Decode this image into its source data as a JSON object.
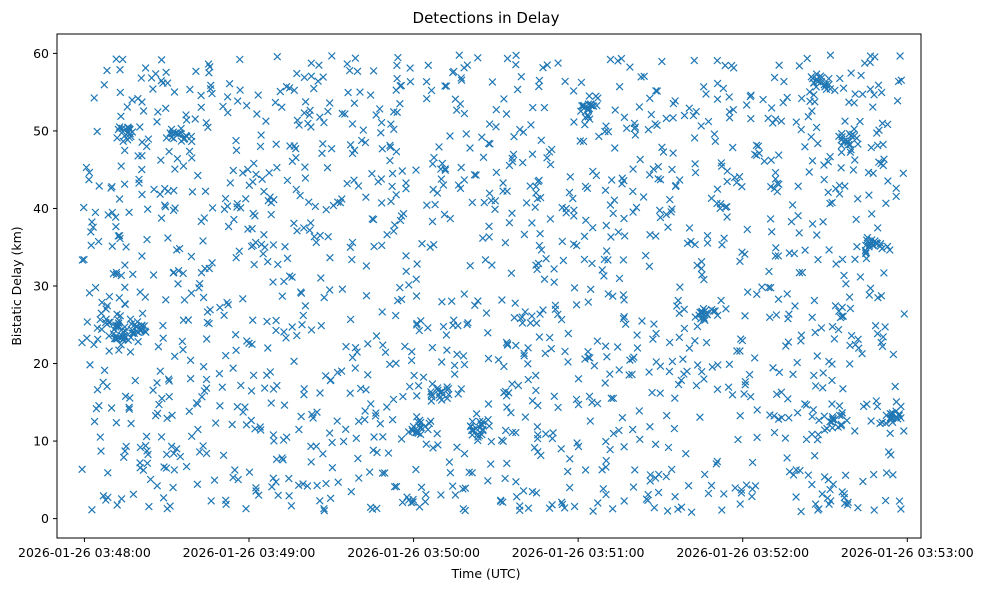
{
  "chart_data": {
    "type": "scatter",
    "title": "Detections in Delay",
    "xlabel": "Time (UTC)",
    "ylabel": "Bistatic Delay (km)",
    "marker": "x",
    "color": "#1f77b4",
    "grid": false,
    "legend": "none",
    "xlim": [
      "2026-01-26 03:47:50",
      "2026-01-26 03:53:05"
    ],
    "ylim": [
      -2.5,
      62.5
    ],
    "xticks": [
      "2026-01-26 03:48:00",
      "2026-01-26 03:49:00",
      "2026-01-26 03:50:00",
      "2026-01-26 03:51:00",
      "2026-01-26 03:52:00",
      "2026-01-26 03:53:00"
    ],
    "yticks": [
      "0",
      "10",
      "20",
      "30",
      "40",
      "50",
      "60"
    ],
    "x_range": [
      "2026-01-26 03:47:59",
      "2026-01-26 03:52:59"
    ],
    "y_range": [
      0.8,
      59.8
    ],
    "approximate_point_count": 1800,
    "clusters": [
      {
        "x": "2026-01-26 03:48:14",
        "y": 23.5
      },
      {
        "x": "2026-01-26 03:48:11",
        "y": 25.2
      },
      {
        "x": "2026-01-26 03:48:19",
        "y": 24.5
      },
      {
        "x": "2026-01-26 03:50:02",
        "y": 11.8
      },
      {
        "x": "2026-01-26 03:50:24",
        "y": 11.5
      },
      {
        "x": "2026-01-26 03:50:10",
        "y": 15.8
      },
      {
        "x": "2026-01-26 03:48:15",
        "y": 49.5
      },
      {
        "x": "2026-01-26 03:48:34",
        "y": 49.5
      },
      {
        "x": "2026-01-26 03:52:47",
        "y": 35.5
      },
      {
        "x": "2026-01-26 03:52:38",
        "y": 49.0
      },
      {
        "x": "2026-01-26 03:52:29",
        "y": 56.5
      },
      {
        "x": "2026-01-26 03:52:34",
        "y": 13.0
      },
      {
        "x": "2026-01-26 03:52:56",
        "y": 13.0
      },
      {
        "x": "2026-01-26 03:51:46",
        "y": 26.5
      },
      {
        "x": "2026-01-26 03:51:04",
        "y": 52.5
      }
    ]
  }
}
